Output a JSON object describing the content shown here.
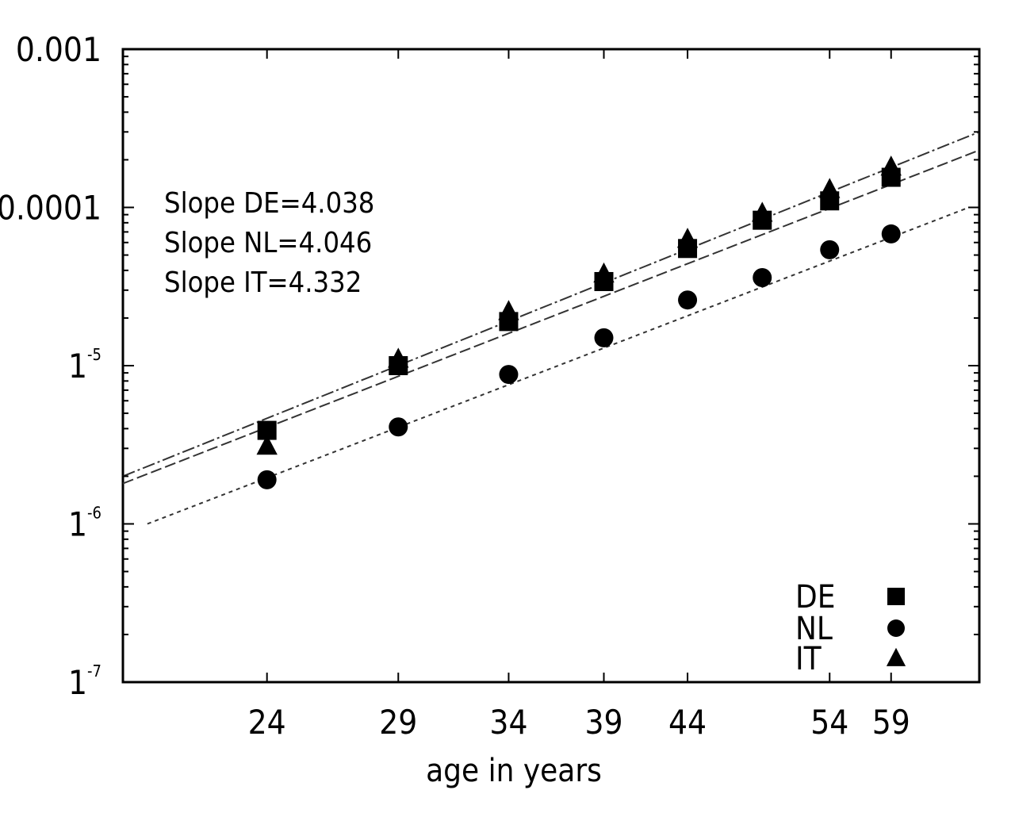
{
  "chart_data": {
    "type": "scatter",
    "x_ticks": [
      24,
      29,
      34,
      39,
      44,
      54,
      59
    ],
    "y_ticks": [
      {
        "value": 0.001,
        "label": "0.001",
        "sup": ""
      },
      {
        "value": 0.0001,
        "label": "0.0001",
        "sup": ""
      },
      {
        "value": 1e-05,
        "label": "1",
        "sup": "-5"
      },
      {
        "value": 1e-06,
        "label": "1",
        "sup": "-6"
      },
      {
        "value": 1e-07,
        "label": "1",
        "sup": "-7"
      }
    ],
    "xlabel": "age in years",
    "ylabel": "",
    "x_scale": "log",
    "y_scale": "log",
    "xlim": [
      19.5,
      67
    ],
    "ylim": [
      1e-07,
      0.001
    ],
    "annotations": [
      "Slope DE=4.038",
      "Slope NL=4.046",
      "Slope IT=4.332"
    ],
    "legend_position": "bottom-right",
    "series": [
      {
        "name": "DE",
        "marker": "square",
        "x": [
          24,
          29,
          34,
          39,
          44,
          49,
          54,
          59
        ],
        "y": [
          3.9e-06,
          1e-05,
          1.9e-05,
          3.4e-05,
          5.5e-05,
          8.3e-05,
          0.00011,
          0.000155
        ],
        "fit": {
          "slope": 4.038,
          "x": [
            19.5,
            67
          ],
          "y": [
            1.8e-06,
            0.00023
          ]
        }
      },
      {
        "name": "NL",
        "marker": "circle",
        "x": [
          24,
          29,
          34,
          39,
          44,
          49,
          54,
          59
        ],
        "y": [
          1.9e-06,
          4.1e-06,
          8.8e-06,
          1.5e-05,
          2.6e-05,
          3.6e-05,
          5.4e-05,
          6.8e-05
        ],
        "fit": {
          "slope": 4.046,
          "x": [
            20.2,
            66
          ],
          "y": [
            1e-06,
            0.0001
          ]
        }
      },
      {
        "name": "IT",
        "marker": "triangle",
        "x": [
          24,
          29,
          34,
          39,
          44,
          49,
          54,
          59
        ],
        "y": [
          3.1e-06,
          1.1e-05,
          2.2e-05,
          3.8e-05,
          6.3e-05,
          9.2e-05,
          0.00013,
          0.00018
        ],
        "fit": {
          "slope": 4.332,
          "x": [
            19.5,
            67
          ],
          "y": [
            2e-06,
            0.0003
          ]
        }
      }
    ]
  }
}
